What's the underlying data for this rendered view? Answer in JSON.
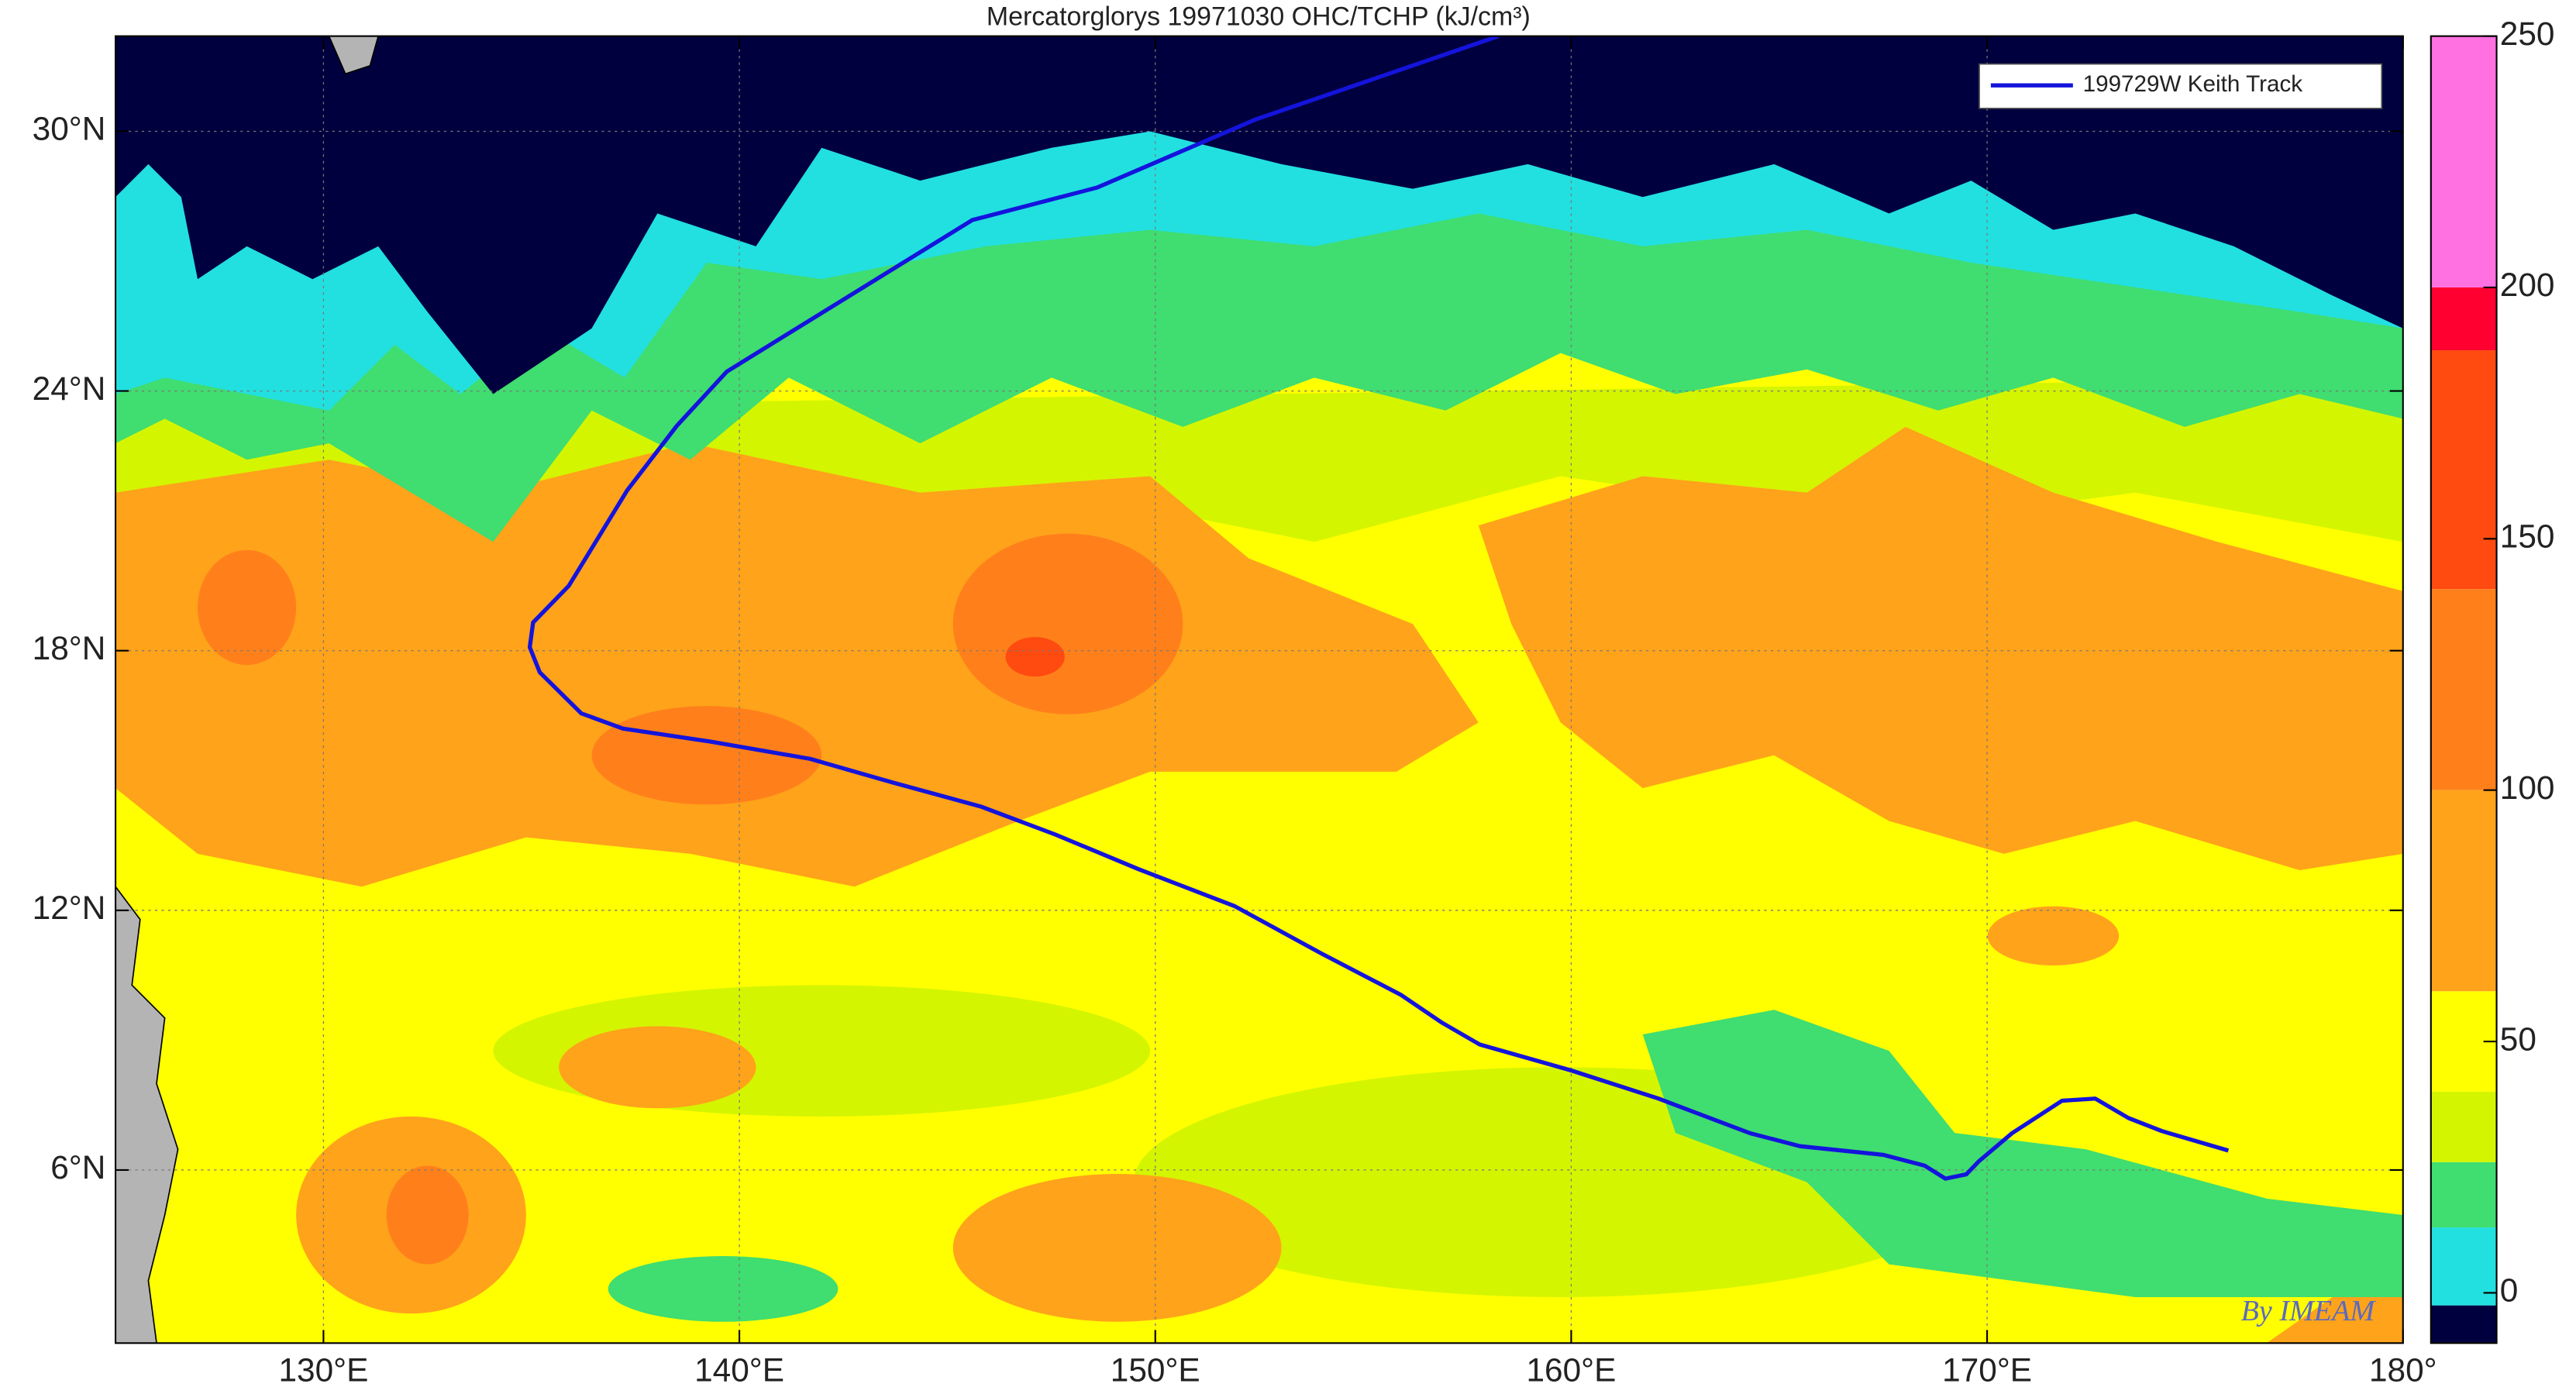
{
  "chart_data": {
    "type": "line",
    "title": "Mercatorglorys 19971030 OHC/TCHP (kJ/cm³)",
    "watermark": "By IMEAM",
    "xlim": [
      125,
      180
    ],
    "ylim": [
      2,
      32.2
    ],
    "xticks": [
      {
        "value": 130,
        "label": "130°E"
      },
      {
        "value": 140,
        "label": "140°E"
      },
      {
        "value": 150,
        "label": "150°E"
      },
      {
        "value": 160,
        "label": "160°E"
      },
      {
        "value": 170,
        "label": "170°E"
      },
      {
        "value": 180,
        "label": "180°"
      }
    ],
    "yticks": [
      {
        "value": 6,
        "label": "6°N"
      },
      {
        "value": 12,
        "label": "12°N"
      },
      {
        "value": 18,
        "label": "18°N"
      },
      {
        "value": 24,
        "label": "24°N"
      },
      {
        "value": 30,
        "label": "30°N"
      }
    ],
    "grid": true,
    "legend": "upper right",
    "series": [
      {
        "name": "199729W Keith Track",
        "color": "#1414dc",
        "x": [
          158.25,
          152.4,
          148.6,
          145.6,
          139.7,
          138.5,
          137.3,
          135.9,
          135.04,
          134.96,
          135.2,
          136.2,
          137.2,
          139.3,
          141.7,
          143.7,
          145.8,
          147.6,
          149.6,
          151.9,
          154.0,
          155.9,
          156.9,
          157.8,
          160.0,
          162.1,
          164.3,
          165.5,
          167.5,
          168.5,
          169.0,
          169.5,
          169.8,
          170.6,
          171.8,
          172.6,
          173.4,
          174.2,
          175.8
        ],
        "y": [
          32.2,
          30.27,
          28.7,
          27.95,
          24.45,
          23.2,
          21.7,
          19.5,
          18.65,
          18.08,
          17.5,
          16.55,
          16.2,
          15.9,
          15.5,
          14.95,
          14.4,
          13.75,
          12.95,
          12.1,
          11.0,
          10.05,
          9.4,
          8.9,
          8.3,
          7.65,
          6.85,
          6.55,
          6.35,
          6.1,
          5.8,
          5.9,
          6.2,
          6.85,
          7.6,
          7.65,
          7.2,
          6.9,
          6.45
        ]
      }
    ],
    "colorbar": {
      "clim": [
        -10,
        250
      ],
      "ticks": [
        0,
        50,
        100,
        150,
        200,
        250
      ],
      "levels": [
        {
          "from": -10,
          "to": -2.5,
          "color": "#00003f"
        },
        {
          "from": -2.5,
          "to": 13,
          "color": "#22e0e0"
        },
        {
          "from": 13,
          "to": 26,
          "color": "#40dd70"
        },
        {
          "from": 26,
          "to": 40,
          "color": "#d4f500"
        },
        {
          "from": 40,
          "to": 60,
          "color": "#ffff00"
        },
        {
          "from": 60,
          "to": 100,
          "color": "#ffa31a"
        },
        {
          "from": 100,
          "to": 140,
          "color": "#ff801a"
        },
        {
          "from": 140,
          "to": 187.5,
          "color": "#ff4a10"
        },
        {
          "from": 187.5,
          "to": 200,
          "color": "#ff0030"
        },
        {
          "from": 200,
          "to": 250,
          "color": "#ff70e0"
        }
      ]
    }
  }
}
